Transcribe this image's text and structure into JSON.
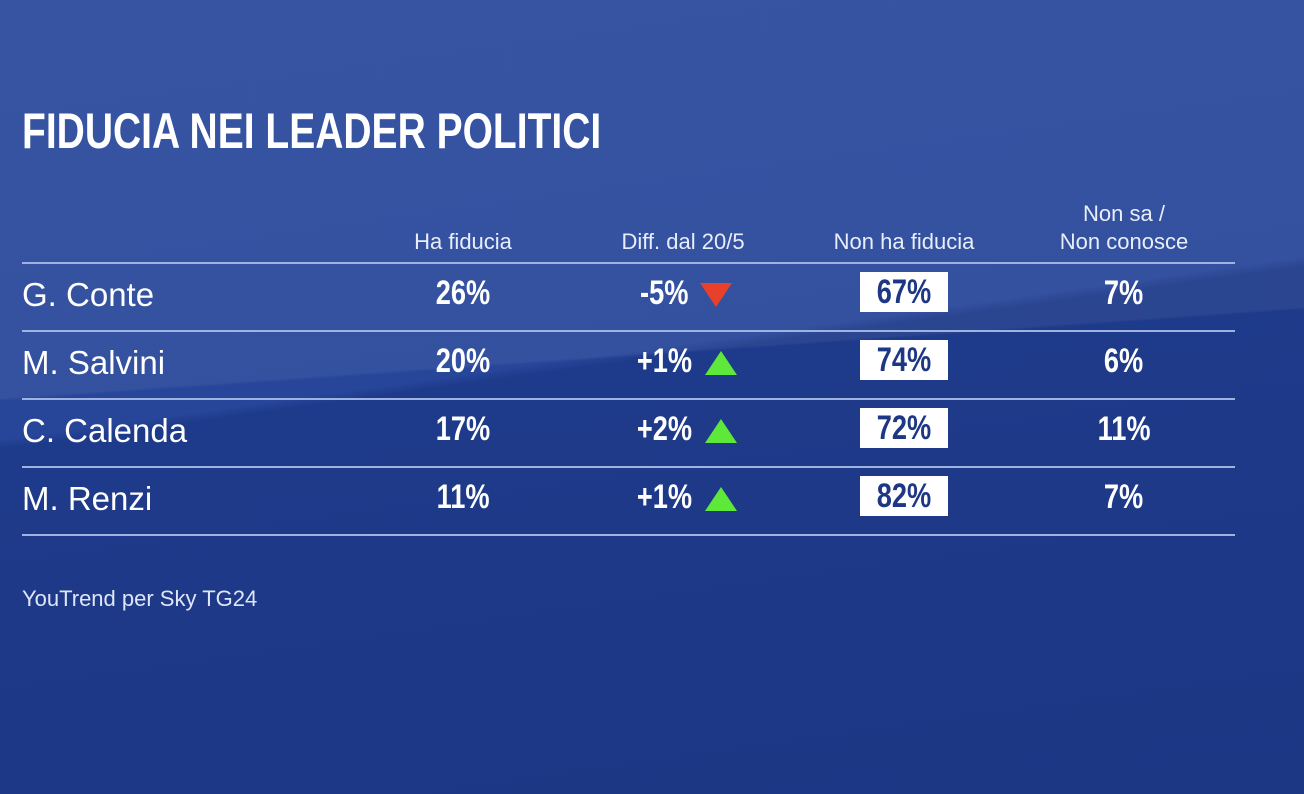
{
  "title": "FIDUCIA NEI LEADER POLITICI",
  "source": "YouTrend per Sky TG24",
  "chart_data": {
    "type": "table",
    "title": "FIDUCIA NEI LEADER POLITICI",
    "columns": [
      "Ha fiducia",
      "Diff. dal 20/5",
      "Non ha fiducia",
      "Non sa /",
      "Non conosce"
    ],
    "rows": [
      {
        "name": "G. Conte",
        "ha": "26%",
        "diff": "-5%",
        "trend": "down",
        "non_ha": "67%",
        "non_sa": "7%"
      },
      {
        "name": "M. Salvini",
        "ha": "20%",
        "diff": "+1%",
        "trend": "up",
        "non_ha": "74%",
        "non_sa": "6%"
      },
      {
        "name": "C. Calenda",
        "ha": "17%",
        "diff": "+2%",
        "trend": "up",
        "non_ha": "72%",
        "non_sa": "11%"
      },
      {
        "name": "M. Renzi",
        "ha": "11%",
        "diff": "+1%",
        "trend": "up",
        "non_ha": "82%",
        "non_sa": "7%"
      }
    ],
    "colors": {
      "up": "#5ee83a",
      "down": "#e8402a",
      "background": "#1e3a8a"
    }
  }
}
